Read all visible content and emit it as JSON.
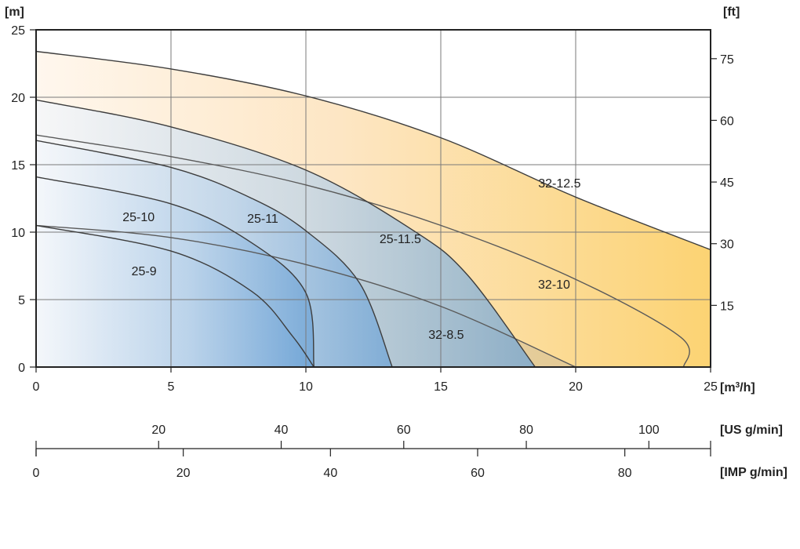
{
  "chart_data": {
    "type": "line",
    "x_unit_label": "[m³/h]",
    "y_left_unit_label": "[m]",
    "y_right_unit_label": "[ft]",
    "xlim": [
      0,
      25
    ],
    "ylim": [
      0,
      25
    ],
    "x_ticks": [
      0,
      5,
      10,
      15,
      20,
      25
    ],
    "y_ticks": [
      0,
      5,
      10,
      15,
      20,
      25
    ],
    "ft_ticks": [
      15,
      30,
      45,
      60,
      75
    ],
    "grid": true,
    "secondary_axes": [
      {
        "label": "[US g/min]",
        "ticks": [
          20,
          40,
          60,
          80,
          100
        ],
        "per_m3h": 4.4029
      },
      {
        "label": "[IMP g/min]",
        "ticks": [
          0,
          20,
          40,
          60,
          80
        ],
        "per_m3h": 3.6662
      }
    ],
    "series": [
      {
        "name": "32-12.5",
        "label_at": [
          19.4,
          13.3
        ],
        "fill": "orange",
        "points": [
          [
            0,
            23.4
          ],
          [
            5,
            22.1
          ],
          [
            10,
            20.1
          ],
          [
            15,
            17.0
          ],
          [
            20,
            12.6
          ],
          [
            25,
            8.7
          ]
        ]
      },
      {
        "name": "32-10",
        "label_at": [
          19.2,
          5.8
        ],
        "fill": "none",
        "points": [
          [
            0,
            17.2
          ],
          [
            5,
            15.6
          ],
          [
            10,
            13.5
          ],
          [
            15,
            10.5
          ],
          [
            20,
            6.5
          ],
          [
            23.9,
            2.2
          ],
          [
            24.0,
            0
          ]
        ]
      },
      {
        "name": "32-8.5",
        "label_at": [
          15.2,
          2.1
        ],
        "fill": "tan",
        "points": [
          [
            0,
            10.5
          ],
          [
            5,
            9.6
          ],
          [
            10,
            7.6
          ],
          [
            15,
            4.5
          ],
          [
            20,
            0
          ]
        ]
      },
      {
        "name": "25-11.5",
        "label_at": [
          13.5,
          9.2
        ],
        "fill": "blue",
        "points": [
          [
            0,
            19.8
          ],
          [
            5,
            17.8
          ],
          [
            10,
            14.6
          ],
          [
            14,
            10.1
          ],
          [
            16,
            6.8
          ],
          [
            18.5,
            0
          ]
        ]
      },
      {
        "name": "25-11",
        "label_at": [
          8.4,
          10.7
        ],
        "fill": "blue",
        "points": [
          [
            0,
            16.8
          ],
          [
            5,
            14.8
          ],
          [
            8,
            12.5
          ],
          [
            10,
            10.1
          ],
          [
            12,
            6.2
          ],
          [
            13.2,
            0
          ]
        ]
      },
      {
        "name": "25-10",
        "label_at": [
          3.8,
          10.8
        ],
        "fill": "blue",
        "points": [
          [
            0,
            14.1
          ],
          [
            5,
            12.1
          ],
          [
            8,
            9.2
          ],
          [
            10,
            5.5
          ],
          [
            10.3,
            0
          ]
        ]
      },
      {
        "name": "25-9",
        "label_at": [
          4.0,
          6.8
        ],
        "fill": "blue",
        "points": [
          [
            0,
            10.5
          ],
          [
            5,
            8.6
          ],
          [
            8,
            5.6
          ],
          [
            9.5,
            2.3
          ],
          [
            10.3,
            0
          ]
        ]
      }
    ]
  }
}
